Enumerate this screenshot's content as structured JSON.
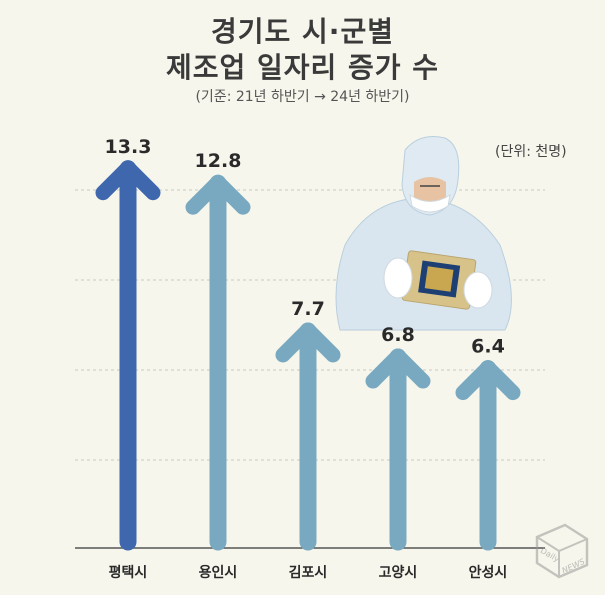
{
  "chart_data": {
    "type": "bar",
    "title": "경기도 시·군별",
    "title_line2": "제조업 일자리 증가 수",
    "subtitle": "(기준: 21년 하반기 → 24년 하반기)",
    "unit_label": "(단위: 천명)",
    "categories": [
      "평택시",
      "용인시",
      "김포시",
      "고양시",
      "안성시"
    ],
    "values": [
      13.3,
      12.8,
      7.7,
      6.8,
      6.4
    ],
    "value_labels": [
      "13.3",
      "12.8",
      "7.7",
      "6.8",
      "6.4"
    ],
    "ylim": [
      0,
      14.5
    ],
    "grid": true,
    "colors": [
      "#3f67ad",
      "#78a9c0",
      "#78a9c0",
      "#78a9c0",
      "#78a9c0"
    ]
  },
  "watermark": {
    "line1": "Daily",
    "line2": "NEWS"
  }
}
